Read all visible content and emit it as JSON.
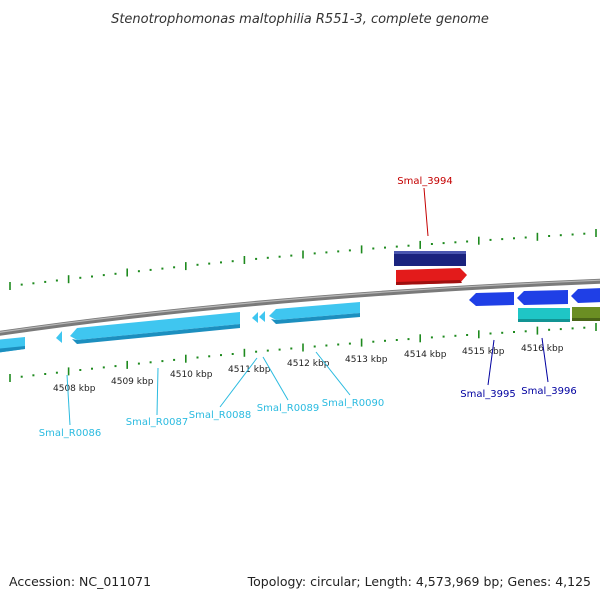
{
  "title": "Stenotrophomonas maltophilia R551-3, complete genome",
  "footer": {
    "accession": "Accession: NC_011071",
    "summary": "Topology: circular; Length: 4,573,969 bp; Genes: 4,125"
  },
  "colors": {
    "backbone": "#808080",
    "tick": "#1e8a1e",
    "rna_gene": "#3fc6f0",
    "rna_label": "#2bbbe0",
    "cds_dark_blue": "#1a237e",
    "cds_blue": "#1f3fe6",
    "cds_red": "#e31b1b",
    "red_label": "#c40000",
    "blue_label": "#0000a0",
    "cyan": "#1fc6c6",
    "olive": "#6b8e23"
  },
  "ruler": {
    "unit": "kbp",
    "labels": [
      "4508 kbp",
      "4509 kbp",
      "4510 kbp",
      "4511 kbp",
      "4512 kbp",
      "4513 kbp",
      "4514 kbp",
      "4515 kbp",
      "4516 kbp"
    ]
  },
  "features": [
    {
      "name": "Smal_R0086",
      "label_color": "rna_label"
    },
    {
      "name": "Smal_R0087",
      "label_color": "rna_label"
    },
    {
      "name": "Smal_R0088",
      "label_color": "rna_label"
    },
    {
      "name": "Smal_R0089",
      "label_color": "rna_label"
    },
    {
      "name": "Smal_R0090",
      "label_color": "rna_label"
    },
    {
      "name": "Smal_3994",
      "label_color": "red_label"
    },
    {
      "name": "Smal_3995",
      "label_color": "blue_label"
    },
    {
      "name": "Smal_3996",
      "label_color": "blue_label"
    }
  ]
}
